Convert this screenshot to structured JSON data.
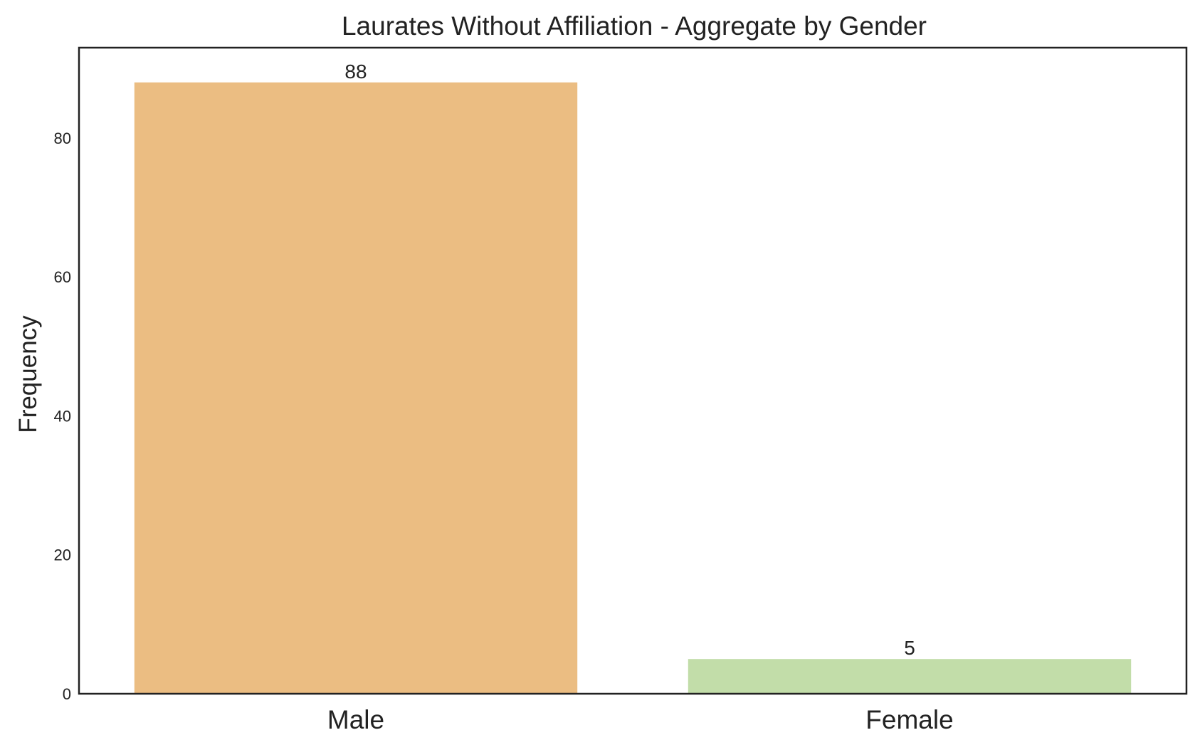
{
  "chart_data": {
    "type": "bar",
    "title": "Laurates Without Affiliation - Aggregate by Gender",
    "xlabel": "",
    "ylabel": "Frequency",
    "categories": [
      "Male",
      "Female"
    ],
    "values": [
      88,
      5
    ],
    "data_labels": [
      "88",
      "5"
    ],
    "colors": [
      "#ebbd82",
      "#c2dda9"
    ],
    "ylim": [
      0,
      93
    ],
    "yticks": [
      0,
      20,
      40,
      60,
      80
    ],
    "ytick_labels": [
      "0",
      "20",
      "40",
      "60",
      "80"
    ],
    "grid": false,
    "legend": "none"
  }
}
